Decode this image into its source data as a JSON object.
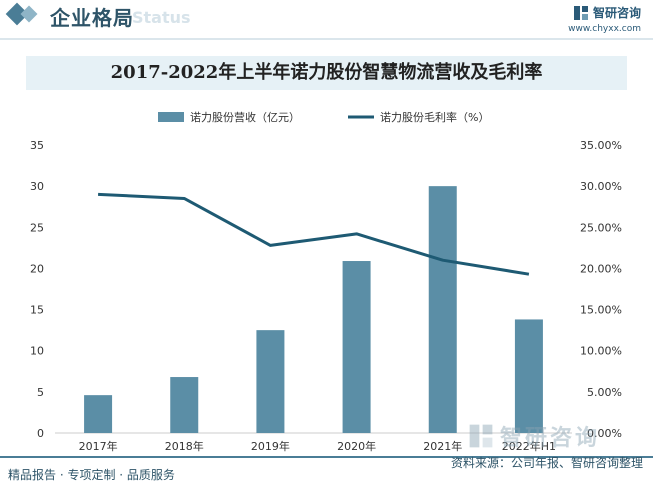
{
  "header": {
    "section_title": "企业格局",
    "section_ghost": "Status",
    "brand_name": "智研咨询",
    "brand_url": "www.chyxx.com"
  },
  "chart_data": {
    "type": "bar+line",
    "title": "2017-2022年上半年诺力股份智慧物流营收及毛利率",
    "categories": [
      "2017年",
      "2018年",
      "2019年",
      "2020年",
      "2021年",
      "2022年H1"
    ],
    "series": [
      {
        "name": "诺力股份营收（亿元）",
        "type": "bar",
        "axis": "left",
        "color": "#5b8ea6",
        "values": [
          4.6,
          6.8,
          12.5,
          20.9,
          30.0,
          13.8
        ]
      },
      {
        "name": "诺力股份毛利率（%）",
        "type": "line",
        "axis": "right",
        "color": "#1e5a73",
        "values": [
          29.0,
          28.5,
          22.8,
          24.2,
          21.0,
          19.3
        ]
      }
    ],
    "y_left": {
      "min": 0,
      "max": 35,
      "ticks": [
        "0",
        "5",
        "10",
        "15",
        "20",
        "25",
        "30",
        "35"
      ]
    },
    "y_right": {
      "min": 0,
      "max": 35,
      "ticks": [
        "0.00%",
        "5.00%",
        "10.00%",
        "15.00%",
        "20.00%",
        "25.00%",
        "30.00%",
        "35.00%"
      ]
    },
    "legend_position": "top",
    "grid": false
  },
  "footer": {
    "left_text": "精品报告 · 专项定制 · 品质服务",
    "source_text": "资料来源：公司年报、智研咨询整理"
  },
  "watermark": {
    "text": "智研咨询"
  }
}
